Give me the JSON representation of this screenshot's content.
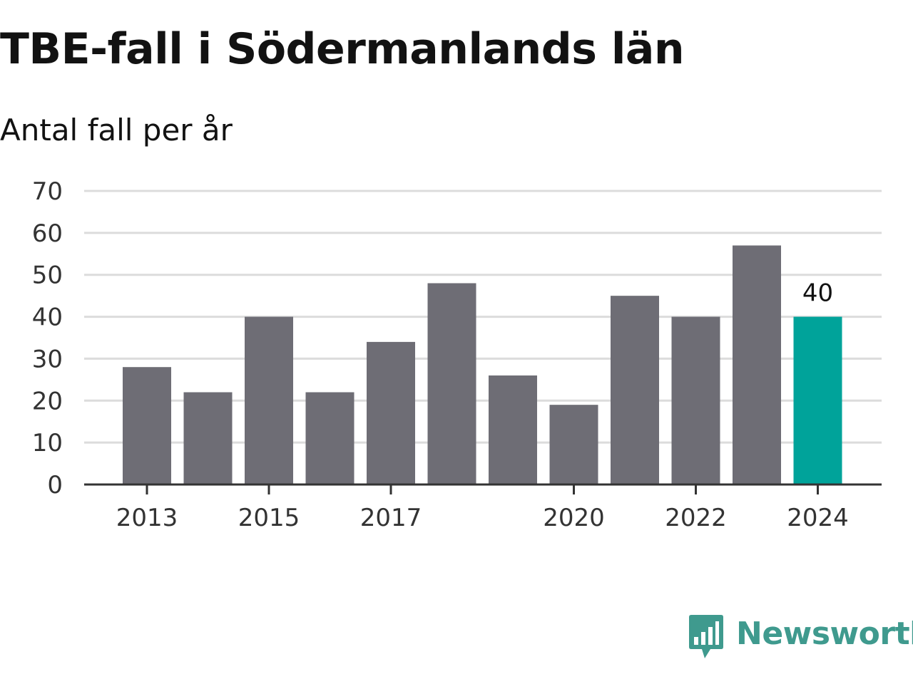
{
  "title": "TBE-fall i Södermanlands län",
  "subtitle": "Antal fall per år",
  "brand": {
    "name": "Newsworthy",
    "icon": "newsworthy-logo-icon",
    "color": "#3f9a8e"
  },
  "chart_data": {
    "type": "bar",
    "categories": [
      "2013",
      "2014",
      "2015",
      "2016",
      "2017",
      "2018",
      "2019",
      "2020",
      "2021",
      "2022",
      "2023",
      "2024"
    ],
    "tick_labels": [
      "2013",
      "",
      "2015",
      "",
      "2017",
      "",
      "",
      "2020",
      "",
      "2022",
      "",
      "2024"
    ],
    "values": [
      28,
      22,
      40,
      22,
      34,
      48,
      26,
      19,
      45,
      40,
      57,
      40
    ],
    "highlight_index": 11,
    "data_labels": [
      {
        "index": 11,
        "text": "40"
      }
    ],
    "ylim": [
      0,
      70
    ],
    "yticks": [
      0,
      10,
      20,
      30,
      40,
      50,
      60,
      70
    ],
    "grid": true,
    "colors": {
      "bar": "#6e6d75",
      "highlight": "#00a39a",
      "grid": "#dcdcdc",
      "axis": "#333333"
    }
  }
}
